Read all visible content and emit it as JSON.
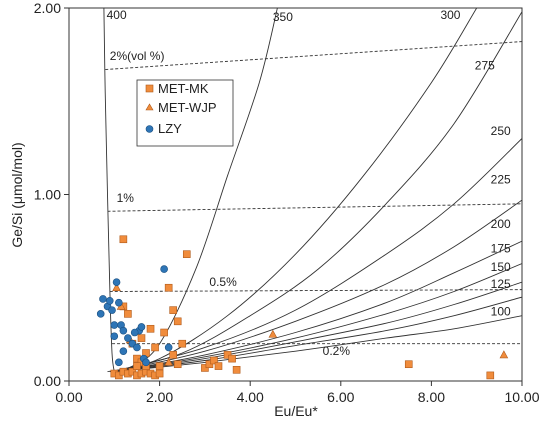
{
  "chart_data": {
    "type": "scatter",
    "xlabel": "Eu/Eu*",
    "ylabel": "Ge/Si (μmol/mol)",
    "xlim": [
      0,
      10
    ],
    "ylim": [
      0,
      2
    ],
    "x_ticks": [
      "0.00",
      "2.00",
      "4.00",
      "6.00",
      "8.00",
      "10.00"
    ],
    "y_ticks": [
      "0.00",
      "1.00",
      "2.00"
    ],
    "grid": false,
    "legend_position": "upper-left",
    "legend": [
      {
        "name": "MET-MK",
        "marker": "square",
        "color": "#f08c3c"
      },
      {
        "name": "MET-WJP",
        "marker": "triangle",
        "color": "#f08c3c"
      },
      {
        "name": "LZY",
        "marker": "circle",
        "color": "#2e75b6"
      }
    ],
    "temperature_curves": [
      {
        "label": "400",
        "points": [
          [
            0.77,
            2.0
          ],
          [
            0.8,
            1.55
          ],
          [
            0.85,
            1.0
          ],
          [
            0.9,
            0.5
          ],
          [
            0.95,
            0.15
          ],
          [
            1.0,
            0.05
          ]
        ]
      },
      {
        "label": "350",
        "points": [
          [
            0.85,
            0.05
          ],
          [
            1.4,
            0.08
          ],
          [
            2.0,
            0.2
          ],
          [
            2.8,
            0.6
          ],
          [
            3.5,
            1.1
          ],
          [
            4.2,
            1.6
          ],
          [
            4.6,
            2.0
          ]
        ]
      },
      {
        "label": "300",
        "points": [
          [
            0.9,
            0.05
          ],
          [
            2.0,
            0.12
          ],
          [
            3.5,
            0.35
          ],
          [
            5.0,
            0.68
          ],
          [
            6.5,
            1.1
          ],
          [
            8.0,
            1.6
          ],
          [
            9.0,
            2.0
          ]
        ]
      },
      {
        "label": "275",
        "points": [
          [
            0.95,
            0.05
          ],
          [
            2.5,
            0.15
          ],
          [
            4.0,
            0.35
          ],
          [
            5.5,
            0.6
          ],
          [
            7.0,
            0.95
          ],
          [
            8.5,
            1.38
          ],
          [
            10.0,
            1.98
          ]
        ]
      },
      {
        "label": "250",
        "points": [
          [
            0.95,
            0.05
          ],
          [
            3.0,
            0.18
          ],
          [
            5.0,
            0.38
          ],
          [
            7.0,
            0.68
          ],
          [
            8.5,
            0.95
          ],
          [
            10.0,
            1.3
          ]
        ]
      },
      {
        "label": "225",
        "points": [
          [
            1.0,
            0.05
          ],
          [
            3.0,
            0.16
          ],
          [
            5.0,
            0.32
          ],
          [
            7.0,
            0.52
          ],
          [
            8.5,
            0.72
          ],
          [
            10.0,
            0.97
          ]
        ]
      },
      {
        "label": "200",
        "points": [
          [
            1.0,
            0.05
          ],
          [
            3.0,
            0.14
          ],
          [
            5.0,
            0.26
          ],
          [
            7.0,
            0.42
          ],
          [
            8.5,
            0.58
          ],
          [
            10.0,
            0.75
          ]
        ]
      },
      {
        "label": "175",
        "points": [
          [
            1.0,
            0.05
          ],
          [
            3.0,
            0.13
          ],
          [
            5.0,
            0.23
          ],
          [
            7.0,
            0.36
          ],
          [
            8.5,
            0.48
          ],
          [
            10.0,
            0.63
          ]
        ]
      },
      {
        "label": "150",
        "points": [
          [
            1.0,
            0.05
          ],
          [
            3.0,
            0.12
          ],
          [
            5.0,
            0.21
          ],
          [
            7.0,
            0.31
          ],
          [
            8.5,
            0.41
          ],
          [
            10.0,
            0.53
          ]
        ]
      },
      {
        "label": "125",
        "points": [
          [
            1.0,
            0.05
          ],
          [
            3.0,
            0.11
          ],
          [
            5.0,
            0.19
          ],
          [
            7.0,
            0.27
          ],
          [
            8.5,
            0.35
          ],
          [
            10.0,
            0.45
          ]
        ]
      },
      {
        "label": "100",
        "points": [
          [
            1.0,
            0.05
          ],
          [
            3.0,
            0.1
          ],
          [
            5.0,
            0.16
          ],
          [
            7.0,
            0.23
          ],
          [
            8.5,
            0.28
          ],
          [
            10.0,
            0.35
          ]
        ]
      }
    ],
    "volume_lines": [
      {
        "label": "2%(vol %)",
        "points": [
          [
            0.8,
            1.67
          ],
          [
            10.0,
            1.82
          ]
        ]
      },
      {
        "label": "1%",
        "points": [
          [
            0.85,
            0.91
          ],
          [
            10.0,
            0.95
          ]
        ]
      },
      {
        "label": "0.5%",
        "points": [
          [
            0.9,
            0.48
          ],
          [
            10.0,
            0.49
          ]
        ]
      },
      {
        "label": "0.2%",
        "points": [
          [
            0.95,
            0.2
          ],
          [
            10.0,
            0.2
          ]
        ]
      }
    ],
    "series": [
      {
        "name": "MET-MK",
        "points": [
          [
            1.2,
            0.76
          ],
          [
            1.0,
            0.04
          ],
          [
            1.1,
            0.03
          ],
          [
            1.2,
            0.05
          ],
          [
            1.3,
            0.04
          ],
          [
            1.4,
            0.05
          ],
          [
            1.5,
            0.03
          ],
          [
            1.6,
            0.04
          ],
          [
            1.7,
            0.05
          ],
          [
            1.8,
            0.04
          ],
          [
            1.9,
            0.03
          ],
          [
            2.0,
            0.04
          ],
          [
            1.2,
            0.4
          ],
          [
            1.3,
            0.36
          ],
          [
            1.4,
            0.2
          ],
          [
            1.5,
            0.12
          ],
          [
            1.6,
            0.1
          ],
          [
            1.7,
            0.08
          ],
          [
            1.8,
            0.28
          ],
          [
            1.9,
            0.18
          ],
          [
            2.0,
            0.08
          ],
          [
            2.1,
            0.26
          ],
          [
            2.2,
            0.5
          ],
          [
            2.3,
            0.38
          ],
          [
            2.4,
            0.32
          ],
          [
            2.5,
            0.2
          ],
          [
            2.6,
            0.68
          ],
          [
            1.6,
            0.23
          ],
          [
            1.7,
            0.15
          ],
          [
            1.5,
            0.08
          ],
          [
            2.3,
            0.14
          ],
          [
            2.4,
            0.09
          ],
          [
            3.0,
            0.07
          ],
          [
            3.1,
            0.09
          ],
          [
            3.2,
            0.11
          ],
          [
            3.3,
            0.08
          ],
          [
            3.5,
            0.14
          ],
          [
            3.6,
            0.12
          ],
          [
            3.7,
            0.06
          ],
          [
            7.5,
            0.09
          ],
          [
            9.3,
            0.03
          ]
        ]
      },
      {
        "name": "MET-WJP",
        "points": [
          [
            1.05,
            0.5
          ],
          [
            1.15,
            0.4
          ],
          [
            1.35,
            0.22
          ],
          [
            2.2,
            0.1
          ],
          [
            4.5,
            0.25
          ],
          [
            9.6,
            0.14
          ]
        ]
      },
      {
        "name": "LZY",
        "points": [
          [
            0.7,
            0.36
          ],
          [
            0.75,
            0.44
          ],
          [
            0.85,
            0.4
          ],
          [
            0.9,
            0.43
          ],
          [
            0.95,
            0.38
          ],
          [
            1.0,
            0.3
          ],
          [
            1.1,
            0.42
          ],
          [
            1.0,
            0.24
          ],
          [
            1.05,
            0.53
          ],
          [
            1.15,
            0.3
          ],
          [
            1.2,
            0.27
          ],
          [
            1.3,
            0.23
          ],
          [
            1.4,
            0.2
          ],
          [
            1.5,
            0.18
          ],
          [
            1.55,
            0.27
          ],
          [
            1.6,
            0.29
          ],
          [
            1.45,
            0.26
          ],
          [
            1.65,
            0.12
          ],
          [
            1.7,
            0.1
          ],
          [
            1.2,
            0.16
          ],
          [
            2.1,
            0.6
          ],
          [
            2.2,
            0.18
          ],
          [
            1.1,
            0.1
          ]
        ]
      }
    ]
  }
}
